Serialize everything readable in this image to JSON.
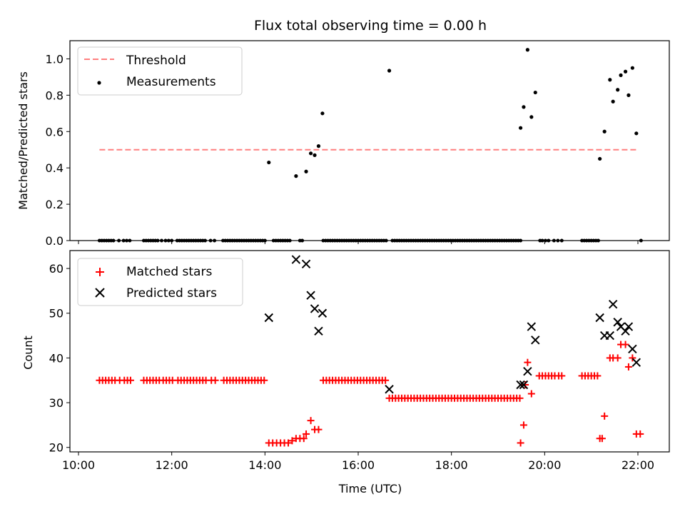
{
  "title": "Flux total observing time = 0.00 h",
  "xlabel": "Time (UTC)",
  "colors": {
    "threshold": "#ff7f7f",
    "measurement": "#000000",
    "matched": "#ff0000",
    "predicted": "#000000"
  },
  "chart_data": [
    {
      "type": "scatter",
      "panel": "top",
      "ylabel": "Matched/Predicted stars",
      "ylim": [
        0,
        1.1
      ],
      "xlim": [
        "09:50",
        "22:40"
      ],
      "x_ticks": [
        "10:00",
        "12:00",
        "14:00",
        "16:00",
        "18:00",
        "20:00",
        "22:00"
      ],
      "y_ticks": [
        "0.0",
        "0.2",
        "0.4",
        "0.6",
        "0.8",
        "1.0"
      ],
      "legend": {
        "position": "top-left",
        "entries": [
          "Threshold",
          "Measurements"
        ]
      },
      "threshold": {
        "name": "Threshold",
        "value": 0.5,
        "x_range": [
          "10:27",
          "22:00"
        ]
      },
      "measurements": {
        "name": "Measurements",
        "zero_times": [
          "10:27",
          "10:30",
          "10:33",
          "10:36",
          "10:39",
          "10:42",
          "10:45",
          "10:52",
          "10:58",
          "11:02",
          "11:06",
          "11:24",
          "11:27",
          "11:30",
          "11:33",
          "11:36",
          "11:39",
          "11:42",
          "11:47",
          "11:52",
          "11:56",
          "12:00",
          "12:07",
          "12:10",
          "12:13",
          "12:16",
          "12:19",
          "12:22",
          "12:25",
          "12:28",
          "12:31",
          "12:34",
          "12:37",
          "12:40",
          "12:43",
          "12:50",
          "12:55",
          "13:06",
          "13:09",
          "13:12",
          "13:15",
          "13:18",
          "13:21",
          "13:24",
          "13:27",
          "13:30",
          "13:33",
          "13:36",
          "13:39",
          "13:42",
          "13:45",
          "13:48",
          "13:51",
          "13:54",
          "13:57",
          "14:00",
          "14:11",
          "14:14",
          "14:17",
          "14:20",
          "14:23",
          "14:26",
          "14:29",
          "14:32",
          "14:45",
          "14:48",
          "15:15",
          "15:18",
          "15:21",
          "15:24",
          "15:27",
          "15:30",
          "15:33",
          "15:36",
          "15:39",
          "15:42",
          "15:45",
          "15:48",
          "15:51",
          "15:54",
          "15:57",
          "16:00",
          "16:03",
          "16:06",
          "16:09",
          "16:12",
          "16:15",
          "16:18",
          "16:21",
          "16:24",
          "16:27",
          "16:30",
          "16:33",
          "16:36",
          "16:44",
          "16:47",
          "16:50",
          "16:53",
          "16:56",
          "16:59",
          "17:02",
          "17:05",
          "17:08",
          "17:11",
          "17:14",
          "17:17",
          "17:20",
          "17:23",
          "17:26",
          "17:29",
          "17:32",
          "17:35",
          "17:38",
          "17:41",
          "17:44",
          "17:47",
          "17:50",
          "17:53",
          "17:56",
          "17:59",
          "18:02",
          "18:05",
          "18:08",
          "18:11",
          "18:14",
          "18:17",
          "18:20",
          "18:23",
          "18:26",
          "18:29",
          "18:32",
          "18:35",
          "18:38",
          "18:41",
          "18:44",
          "18:47",
          "18:50",
          "18:53",
          "18:56",
          "18:59",
          "19:02",
          "19:05",
          "19:08",
          "19:11",
          "19:14",
          "19:17",
          "19:20",
          "19:23",
          "19:26",
          "19:29",
          "19:54",
          "19:57",
          "20:01",
          "20:05",
          "20:12",
          "20:17",
          "20:22",
          "20:48",
          "20:51",
          "20:54",
          "20:57",
          "21:00",
          "21:03",
          "21:06",
          "21:09",
          "22:04"
        ],
        "points": [
          [
            "14:05",
            0.43
          ],
          [
            "14:40",
            0.355
          ],
          [
            "14:53",
            0.38
          ],
          [
            "14:59",
            0.48
          ],
          [
            "15:04",
            0.47
          ],
          [
            "15:09",
            0.52
          ],
          [
            "15:14",
            0.7
          ],
          [
            "16:40",
            0.935
          ],
          [
            "19:29",
            0.62
          ],
          [
            "19:33",
            0.735
          ],
          [
            "19:38",
            1.05
          ],
          [
            "19:43",
            0.68
          ],
          [
            "19:48",
            0.815
          ],
          [
            "21:11",
            0.45
          ],
          [
            "21:17",
            0.6
          ],
          [
            "21:24",
            0.885
          ],
          [
            "21:28",
            0.765
          ],
          [
            "21:34",
            0.83
          ],
          [
            "21:38",
            0.91
          ],
          [
            "21:44",
            0.93
          ],
          [
            "21:48",
            0.8
          ],
          [
            "21:53",
            0.95
          ],
          [
            "21:58",
            0.59
          ]
        ]
      }
    },
    {
      "type": "scatter",
      "panel": "bottom",
      "ylabel": "Count",
      "ylim": [
        19,
        64
      ],
      "xlim": [
        "09:50",
        "22:40"
      ],
      "x_ticks": [
        "10:00",
        "12:00",
        "14:00",
        "16:00",
        "18:00",
        "20:00",
        "22:00"
      ],
      "y_ticks": [
        "20",
        "30",
        "40",
        "50",
        "60"
      ],
      "legend": {
        "position": "top-left",
        "entries": [
          "Matched stars",
          "Predicted stars"
        ]
      },
      "series": [
        {
          "name": "Matched stars",
          "marker": "plus",
          "groups": [
            {
              "y": 35,
              "x": [
                "10:27",
                "10:31",
                "10:35",
                "10:39",
                "10:43",
                "10:47",
                "10:53",
                "10:59",
                "11:03",
                "11:07",
                "11:24",
                "11:28",
                "11:32",
                "11:36",
                "11:40",
                "11:44",
                "11:49",
                "11:53",
                "11:57",
                "12:01",
                "12:08",
                "12:12",
                "12:16",
                "12:20",
                "12:24",
                "12:28",
                "12:32",
                "12:36",
                "12:40",
                "12:44",
                "12:51",
                "12:56",
                "13:07",
                "13:11",
                "13:15",
                "13:19",
                "13:23",
                "13:27",
                "13:31",
                "13:35",
                "13:39",
                "13:43",
                "13:47",
                "13:51",
                "13:55",
                "13:59",
                "15:15",
                "15:19",
                "15:23",
                "15:27",
                "15:31",
                "15:35",
                "15:39",
                "15:43",
                "15:47",
                "15:51",
                "15:55",
                "15:59",
                "16:03",
                "16:07",
                "16:11",
                "16:15",
                "16:19",
                "16:23",
                "16:27",
                "16:31",
                "16:35"
              ]
            },
            {
              "y": 31,
              "x": [
                "16:40",
                "16:44",
                "16:48",
                "16:52",
                "16:56",
                "17:00",
                "17:04",
                "17:08",
                "17:12",
                "17:16",
                "17:20",
                "17:24",
                "17:28",
                "17:32",
                "17:36",
                "17:40",
                "17:44",
                "17:48",
                "17:52",
                "17:56",
                "18:00",
                "18:04",
                "18:08",
                "18:12",
                "18:16",
                "18:20",
                "18:24",
                "18:28",
                "18:32",
                "18:36",
                "18:40",
                "18:44",
                "18:48",
                "18:52",
                "18:56",
                "19:00",
                "19:04",
                "19:08",
                "19:12",
                "19:16",
                "19:20",
                "19:24",
                "19:28"
              ]
            },
            {
              "y": 36,
              "x": [
                "19:53",
                "19:57",
                "20:01",
                "20:05",
                "20:09",
                "20:13",
                "20:18",
                "20:22",
                "20:48",
                "20:52",
                "20:56",
                "21:00",
                "21:04",
                "21:08"
              ]
            }
          ],
          "points": [
            [
              "14:05",
              21
            ],
            [
              "14:10",
              21
            ],
            [
              "14:15",
              21
            ],
            [
              "14:20",
              21
            ],
            [
              "14:25",
              21
            ],
            [
              "14:30",
              21
            ],
            [
              "14:35",
              21.5
            ],
            [
              "14:40",
              22
            ],
            [
              "14:45",
              22
            ],
            [
              "14:50",
              22
            ],
            [
              "14:53",
              23
            ],
            [
              "14:59",
              26
            ],
            [
              "15:04",
              24
            ],
            [
              "15:09",
              24
            ],
            [
              "19:29",
              21
            ],
            [
              "19:33",
              25
            ],
            [
              "19:35",
              34
            ],
            [
              "19:38",
              39
            ],
            [
              "19:43",
              32
            ],
            [
              "21:11",
              22
            ],
            [
              "21:14",
              22
            ],
            [
              "21:17",
              27
            ],
            [
              "21:24",
              40
            ],
            [
              "21:28",
              40
            ],
            [
              "21:34",
              40
            ],
            [
              "21:38",
              43
            ],
            [
              "21:44",
              43
            ],
            [
              "21:48",
              38
            ],
            [
              "21:53",
              40
            ],
            [
              "21:58",
              23
            ],
            [
              "22:03",
              23
            ]
          ]
        },
        {
          "name": "Predicted stars",
          "marker": "x",
          "points": [
            [
              "14:05",
              49
            ],
            [
              "14:40",
              62
            ],
            [
              "14:53",
              61
            ],
            [
              "14:59",
              54
            ],
            [
              "15:04",
              51
            ],
            [
              "15:09",
              46
            ],
            [
              "15:14",
              50
            ],
            [
              "16:40",
              33
            ],
            [
              "19:29",
              34
            ],
            [
              "19:33",
              34
            ],
            [
              "19:38",
              37
            ],
            [
              "19:43",
              47
            ],
            [
              "19:48",
              44
            ],
            [
              "21:11",
              49
            ],
            [
              "21:17",
              45
            ],
            [
              "21:24",
              45
            ],
            [
              "21:28",
              52
            ],
            [
              "21:34",
              48
            ],
            [
              "21:38",
              47
            ],
            [
              "21:44",
              46
            ],
            [
              "21:48",
              47
            ],
            [
              "21:53",
              42
            ],
            [
              "21:58",
              39
            ]
          ]
        }
      ]
    }
  ]
}
